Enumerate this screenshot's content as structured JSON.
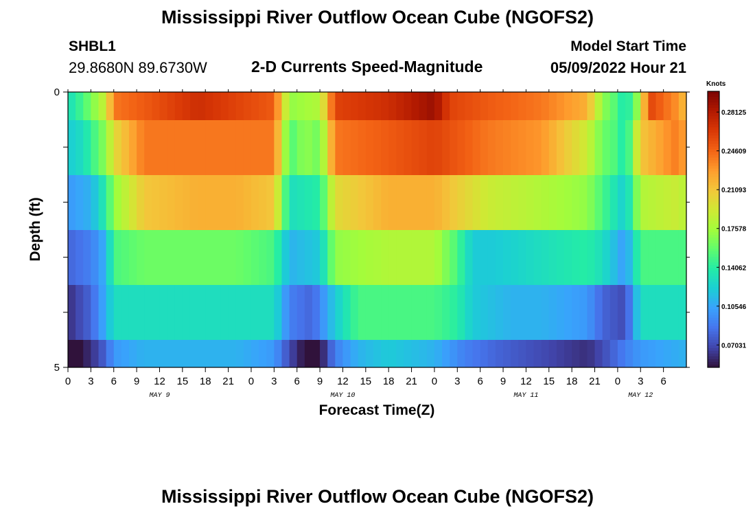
{
  "header": {
    "title": "Mississippi River Outflow Ocean Cube (NGOFS2)",
    "station_id": "SHBL1",
    "station_coords": "29.8680N  89.6730W",
    "subtitle": "2-D Currents Speed-Magnitude",
    "start_label": "Model Start Time",
    "start_value": "05/09/2022 Hour 21"
  },
  "footer": {
    "title": "Mississippi River Outflow Ocean Cube (NGOFS2)"
  },
  "chart_data": {
    "type": "heatmap",
    "title": "2-D Currents Speed-Magnitude",
    "xlabel": "Forecast Time(Z)",
    "ylabel": "Depth (ft)",
    "x_hours": [
      0,
      81
    ],
    "x_tick_labels": [
      "0",
      "3",
      "6",
      "9",
      "12",
      "15",
      "18",
      "21",
      "0",
      "3",
      "6",
      "9",
      "12",
      "15",
      "18",
      "21",
      "0",
      "3",
      "6",
      "9",
      "12",
      "15",
      "18",
      "21",
      "0",
      "3",
      "6"
    ],
    "date_labels": [
      {
        "text": "MAY 9",
        "hour": 12
      },
      {
        "text": "MAY 10",
        "hour": 36
      },
      {
        "text": "MAY 11",
        "hour": 60
      },
      {
        "text": "MAY 12",
        "hour": 75
      }
    ],
    "ylim": [
      0,
      5
    ],
    "y_tick_labels": [
      "0",
      "5"
    ],
    "colorbar": {
      "label": "Knots",
      "ticks": [
        "0.28125",
        "0.24609",
        "0.21093",
        "0.17578",
        "0.14062",
        "0.10546",
        "0.07031"
      ],
      "range": [
        0.05,
        0.3
      ],
      "colormap": [
        "#30123b",
        "#4145ab",
        "#4675ed",
        "#39a2fc",
        "#1bcfd4",
        "#24eca6",
        "#61fc6c",
        "#a4fc3b",
        "#d1e834",
        "#f3c63a",
        "#fe9b2d",
        "#f36315",
        "#d93806",
        "#b11901",
        "#7a0403"
      ]
    },
    "series": [
      {
        "depth": "0-0.5",
        "keyframes": [
          [
            0,
            0.13
          ],
          [
            2,
            0.15
          ],
          [
            5,
            0.19
          ],
          [
            6,
            0.24
          ],
          [
            10,
            0.25
          ],
          [
            17,
            0.27
          ],
          [
            22,
            0.26
          ],
          [
            27,
            0.25
          ],
          [
            29,
            0.17
          ],
          [
            33,
            0.18
          ],
          [
            35,
            0.26
          ],
          [
            42,
            0.27
          ],
          [
            48,
            0.29
          ],
          [
            50,
            0.26
          ],
          [
            55,
            0.25
          ],
          [
            62,
            0.24
          ],
          [
            68,
            0.22
          ],
          [
            70,
            0.17
          ],
          [
            72,
            0.15
          ],
          [
            73,
            0.13
          ],
          [
            75,
            0.18
          ],
          [
            76,
            0.26
          ],
          [
            80,
            0.23
          ],
          [
            81,
            0.21
          ]
        ]
      },
      {
        "depth": "0.5-1.5",
        "keyframes": [
          [
            0,
            0.12
          ],
          [
            2,
            0.13
          ],
          [
            5,
            0.17
          ],
          [
            6,
            0.2
          ],
          [
            10,
            0.24
          ],
          [
            17,
            0.24
          ],
          [
            22,
            0.24
          ],
          [
            27,
            0.24
          ],
          [
            29,
            0.15
          ],
          [
            31,
            0.17
          ],
          [
            33,
            0.16
          ],
          [
            35,
            0.24
          ],
          [
            42,
            0.25
          ],
          [
            48,
            0.26
          ],
          [
            55,
            0.24
          ],
          [
            62,
            0.23
          ],
          [
            68,
            0.19
          ],
          [
            70,
            0.16
          ],
          [
            72,
            0.15
          ],
          [
            73,
            0.13
          ],
          [
            75,
            0.21
          ],
          [
            80,
            0.24
          ],
          [
            81,
            0.22
          ]
        ]
      },
      {
        "depth": "1.5-2.5",
        "keyframes": [
          [
            0,
            0.1
          ],
          [
            3,
            0.11
          ],
          [
            5,
            0.14
          ],
          [
            6,
            0.17
          ],
          [
            10,
            0.21
          ],
          [
            17,
            0.22
          ],
          [
            22,
            0.22
          ],
          [
            27,
            0.21
          ],
          [
            29,
            0.13
          ],
          [
            33,
            0.14
          ],
          [
            35,
            0.2
          ],
          [
            42,
            0.22
          ],
          [
            48,
            0.22
          ],
          [
            55,
            0.19
          ],
          [
            62,
            0.18
          ],
          [
            68,
            0.17
          ],
          [
            70,
            0.15
          ],
          [
            73,
            0.12
          ],
          [
            75,
            0.18
          ],
          [
            80,
            0.19
          ],
          [
            81,
            0.18
          ]
        ]
      },
      {
        "depth": "2.5-3.5",
        "keyframes": [
          [
            0,
            0.08
          ],
          [
            3,
            0.09
          ],
          [
            5,
            0.11
          ],
          [
            6,
            0.15
          ],
          [
            10,
            0.16
          ],
          [
            17,
            0.16
          ],
          [
            22,
            0.16
          ],
          [
            27,
            0.15
          ],
          [
            29,
            0.11
          ],
          [
            33,
            0.12
          ],
          [
            35,
            0.17
          ],
          [
            42,
            0.18
          ],
          [
            48,
            0.18
          ],
          [
            51,
            0.15
          ],
          [
            53,
            0.12
          ],
          [
            56,
            0.12
          ],
          [
            62,
            0.13
          ],
          [
            68,
            0.14
          ],
          [
            70,
            0.13
          ],
          [
            73,
            0.1
          ],
          [
            75,
            0.15
          ],
          [
            81,
            0.15
          ]
        ]
      },
      {
        "depth": "3.5-4.5",
        "keyframes": [
          [
            0,
            0.06
          ],
          [
            3,
            0.08
          ],
          [
            5,
            0.11
          ],
          [
            6,
            0.13
          ],
          [
            10,
            0.13
          ],
          [
            17,
            0.13
          ],
          [
            22,
            0.13
          ],
          [
            27,
            0.13
          ],
          [
            29,
            0.09
          ],
          [
            32,
            0.08
          ],
          [
            35,
            0.12
          ],
          [
            38,
            0.15
          ],
          [
            42,
            0.15
          ],
          [
            48,
            0.15
          ],
          [
            51,
            0.14
          ],
          [
            53,
            0.12
          ],
          [
            58,
            0.11
          ],
          [
            62,
            0.11
          ],
          [
            68,
            0.1
          ],
          [
            70,
            0.08
          ],
          [
            73,
            0.07
          ],
          [
            75,
            0.13
          ],
          [
            81,
            0.13
          ]
        ]
      },
      {
        "depth": "4.5-5",
        "keyframes": [
          [
            0,
            0.04
          ],
          [
            3,
            0.06
          ],
          [
            5,
            0.08
          ],
          [
            6,
            0.1
          ],
          [
            10,
            0.11
          ],
          [
            17,
            0.11
          ],
          [
            22,
            0.11
          ],
          [
            27,
            0.1
          ],
          [
            29,
            0.07
          ],
          [
            31,
            0.05
          ],
          [
            33,
            0.05
          ],
          [
            35,
            0.09
          ],
          [
            38,
            0.11
          ],
          [
            42,
            0.12
          ],
          [
            48,
            0.11
          ],
          [
            52,
            0.09
          ],
          [
            56,
            0.08
          ],
          [
            62,
            0.07
          ],
          [
            68,
            0.06
          ],
          [
            70,
            0.07
          ],
          [
            73,
            0.09
          ],
          [
            75,
            0.1
          ],
          [
            81,
            0.11
          ]
        ]
      }
    ]
  }
}
